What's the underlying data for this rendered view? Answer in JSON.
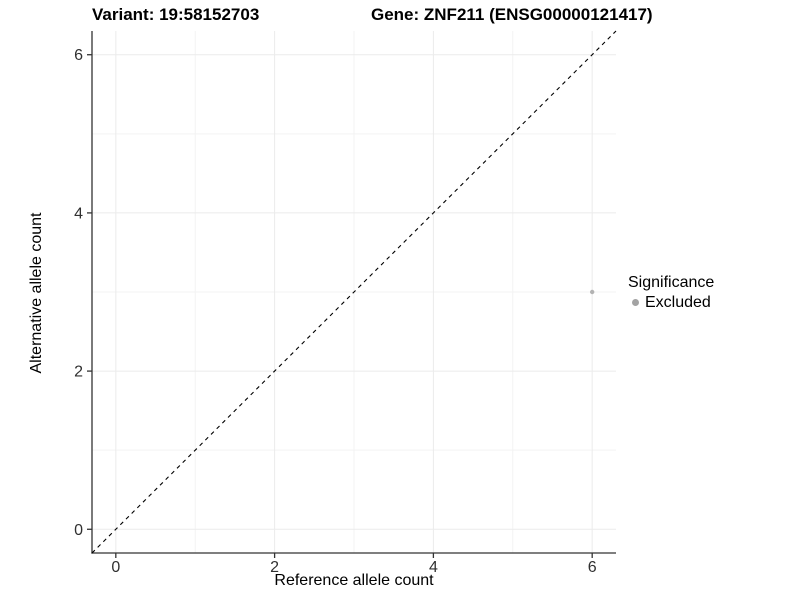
{
  "chart_data": {
    "type": "scatter",
    "title_variant": "Variant: 19:58152703",
    "title_gene": "Gene: ZNF211 (ENSG00000121417)",
    "xlabel": "Reference allele count",
    "ylabel": "Alternative allele count",
    "xlim": [
      -0.3,
      6.3
    ],
    "ylim": [
      -0.3,
      6.3
    ],
    "x_ticks": [
      0,
      2,
      4,
      6
    ],
    "y_ticks": [
      0,
      2,
      4,
      6
    ],
    "x_minor_gridlines": [
      1,
      3,
      5
    ],
    "y_minor_gridlines": [
      1,
      3,
      5
    ],
    "grid": "major and minor light-grey gridlines on white background",
    "identity_line": {
      "style": "dashed",
      "from": [
        -0.3,
        -0.3
      ],
      "to": [
        6.3,
        6.3
      ]
    },
    "series": [
      {
        "name": "Excluded",
        "color": "#b3b3b3",
        "points": [
          {
            "x": 6,
            "y": 3
          }
        ]
      }
    ],
    "legend": {
      "title": "Significance",
      "position": "right",
      "entries": [
        {
          "label": "Excluded",
          "color": "#a3a3a3"
        }
      ]
    }
  },
  "colors": {
    "background": "#ffffff",
    "title_text": "#000000",
    "axis_line": "#333333",
    "tick_mark": "#333333",
    "tick_label": "#303030",
    "grid_major": "#ebebeb",
    "grid_minor": "#f3f3f3",
    "identity_line": "#000000",
    "point": "#b3b3b3",
    "legend_dot": "#a3a3a3"
  }
}
